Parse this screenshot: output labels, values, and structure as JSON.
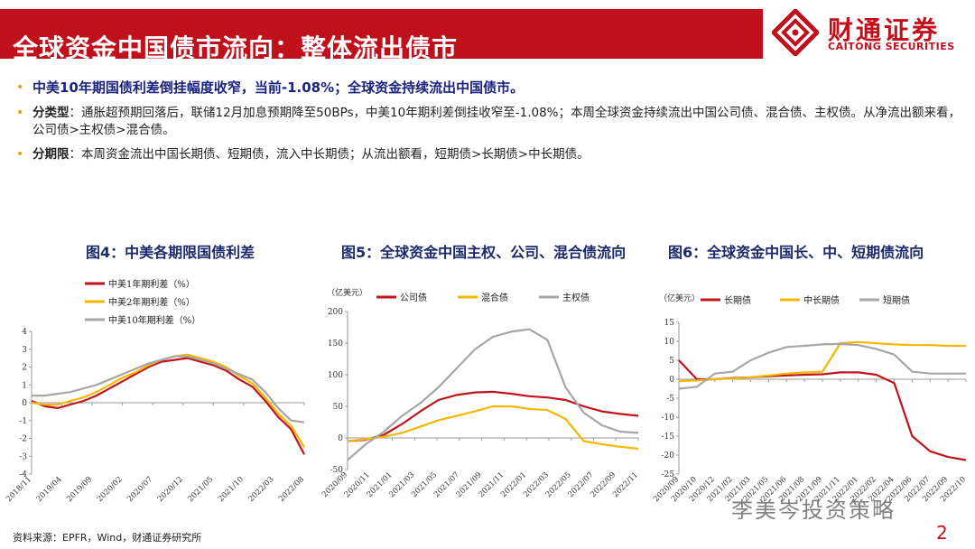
{
  "header": {
    "title": "全球资金中国债市流向：整体流出债市"
  },
  "logo": {
    "name_zh": "财通证券",
    "name_en": "CAITONG SECURITIES"
  },
  "bullets": {
    "b1": "中美10年期国债利差倒挂幅度收窄，当前-1.08%；全球资金持续流出中国债市。",
    "b2_key": "分类型",
    "b2_text": "：通胀超预期回落后，联储12月加息预期降至50BPs，中美10年期利差倒挂收窄至-1.08%；本周全球资金持续流出中国公司债、混合债、主权债。从净流出额来看，公司债>主权债>混合债。",
    "b3_key": "分期限",
    "b3_text": "：本周资金流出中国长期债、短期债，流入中长期债；从流出额看，短期债>长期债>中长期债。"
  },
  "figures": {
    "fig4_title": "图4：中美各期限国债利差",
    "fig5_title": "图5：全球资金中国主权、公司、混合债流向",
    "fig6_title": "图6：全球资金中国长、中、短期债流向"
  },
  "footer": {
    "source": "资料来源：EPFR，Wind，财通证券研究所",
    "page": "2",
    "watermark": "李美岑投资策略"
  },
  "chart_data": [
    {
      "type": "line",
      "title": "图4：中美各期限国债利差",
      "ylim": [
        -4,
        4
      ],
      "yticks": [
        "4",
        "3",
        "2",
        "1",
        "0",
        "-1",
        "-2",
        "-3",
        "-4"
      ],
      "xticks": [
        "2018/11",
        "2019/04",
        "2019/09",
        "2020/02",
        "2020/07",
        "2020/12",
        "2021/05",
        "2021/10",
        "2022/03",
        "2022/08"
      ],
      "series": [
        {
          "name": "中美1年期利差（%）",
          "color": "#c0141c",
          "values": [
            0.1,
            -0.2,
            -0.3,
            -0.1,
            0.1,
            0.4,
            0.8,
            1.2,
            1.6,
            2.0,
            2.3,
            2.4,
            2.5,
            2.3,
            2.1,
            1.8,
            1.3,
            0.9,
            0.1,
            -0.8,
            -1.5,
            -2.9
          ]
        },
        {
          "name": "中美2年期利差（%）",
          "color": "#f5b800",
          "values": [
            0.0,
            -0.1,
            -0.1,
            0.1,
            0.3,
            0.6,
            1.0,
            1.4,
            1.7,
            2.1,
            2.4,
            2.6,
            2.7,
            2.5,
            2.3,
            2.0,
            1.5,
            1.1,
            0.3,
            -0.6,
            -1.3,
            -2.5
          ]
        },
        {
          "name": "中美10年期利差（%）",
          "color": "#a6a6a6",
          "values": [
            0.4,
            0.4,
            0.5,
            0.6,
            0.8,
            1.0,
            1.3,
            1.6,
            1.9,
            2.2,
            2.4,
            2.6,
            2.6,
            2.4,
            2.2,
            1.9,
            1.6,
            1.3,
            0.6,
            -0.3,
            -1.0,
            -1.1
          ]
        }
      ]
    },
    {
      "type": "line",
      "title": "图5：全球资金中国主权、公司、混合债流向",
      "unit": "（亿美元）",
      "ylim": [
        -50,
        200
      ],
      "yticks": [
        "200",
        "150",
        "100",
        "50",
        "0",
        "-50"
      ],
      "xticks": [
        "2020/09",
        "2020/11",
        "2021/01",
        "2021/03",
        "2021/05",
        "2021/07",
        "2021/09",
        "2021/11",
        "2022/01",
        "2022/03",
        "2022/05",
        "2022/07",
        "2022/09",
        "2022/11"
      ],
      "series": [
        {
          "name": "公司债",
          "color": "#c0141c",
          "values": [
            -5,
            -3,
            5,
            22,
            42,
            60,
            68,
            72,
            73,
            70,
            66,
            64,
            60,
            50,
            42,
            38,
            35
          ]
        },
        {
          "name": "混合债",
          "color": "#f5b800",
          "values": [
            -5,
            -2,
            2,
            8,
            18,
            28,
            35,
            42,
            50,
            50,
            46,
            44,
            30,
            -5,
            -10,
            -14,
            -17
          ]
        },
        {
          "name": "主权债",
          "color": "#a6a6a6",
          "values": [
            -35,
            -10,
            10,
            35,
            55,
            80,
            110,
            140,
            160,
            168,
            172,
            155,
            80,
            40,
            20,
            10,
            8
          ]
        }
      ]
    },
    {
      "type": "line",
      "title": "图6：全球资金中国长、中、短期债流向",
      "unit": "（亿美元）",
      "ylim": [
        -25,
        15
      ],
      "yticks": [
        "15",
        "10",
        "5",
        "0",
        "-5",
        "-10",
        "-15",
        "-20",
        "-25"
      ],
      "xticks": [
        "2020/09",
        "2020/10",
        "2020/12",
        "2021/02",
        "2021/03",
        "2021/05",
        "2021/06",
        "2021/08",
        "2021/09",
        "2021/11",
        "2022/01",
        "2022/02",
        "2022/04",
        "2022/06",
        "2022/07",
        "2022/09",
        "2022/10"
      ],
      "series": [
        {
          "name": "长期债",
          "color": "#c0141c",
          "values": [
            5,
            0,
            0,
            0.3,
            0.5,
            0.8,
            1.0,
            1.2,
            1.3,
            1.8,
            1.8,
            1.2,
            -1.0,
            -15,
            -19,
            -20.5,
            -21.3
          ]
        },
        {
          "name": "中长期债",
          "color": "#f5b800",
          "values": [
            -0.5,
            -0.3,
            0,
            0.2,
            0.5,
            1.0,
            1.5,
            1.8,
            2.0,
            9.5,
            9.8,
            9.5,
            9.2,
            9.0,
            9.0,
            8.8,
            8.8
          ]
        },
        {
          "name": "短期债",
          "color": "#a6a6a6",
          "values": [
            -2.5,
            -2,
            1.5,
            2,
            5,
            7,
            8.5,
            8.8,
            9.2,
            9.3,
            9.0,
            8.0,
            6.5,
            2,
            1.5,
            1.5,
            1.5
          ]
        }
      ]
    }
  ]
}
